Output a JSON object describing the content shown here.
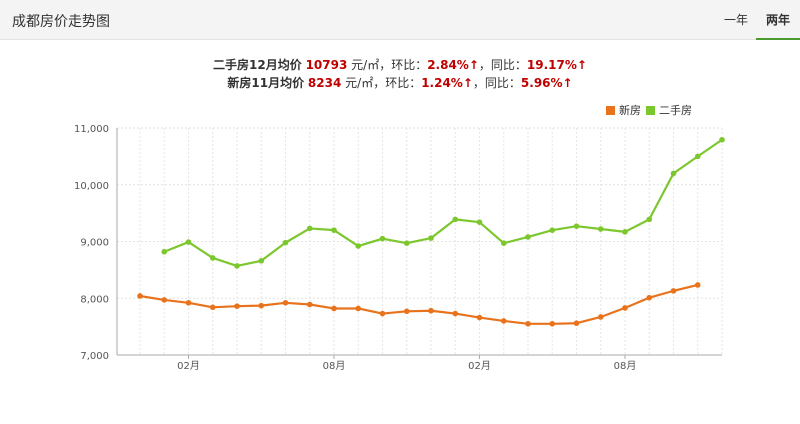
{
  "header": {
    "title": "成都房价走势图",
    "tabs": [
      {
        "label": "一年",
        "active": false
      },
      {
        "label": "两年",
        "active": true
      }
    ]
  },
  "summary": {
    "line1": {
      "label": "二手房12月均价",
      "price": "10793",
      "unit": "元/㎡，环比：",
      "mom": "2.84%↑",
      "sep": "，同比：",
      "yoy": "19.17%↑"
    },
    "line2": {
      "label": "新房11月均价",
      "price": "8234",
      "unit": "元/㎡，环比：",
      "mom": "1.24%↑",
      "sep": "，同比：",
      "yoy": "5.96%↑"
    }
  },
  "colors": {
    "new_home": "#e8731c",
    "second_hand": "#7dc72e",
    "accent_tab": "#4a9a2e",
    "highlight": "#c00000"
  },
  "chart_data": {
    "type": "line",
    "x": [
      0,
      1,
      2,
      3,
      4,
      5,
      6,
      7,
      8,
      9,
      10,
      11,
      12,
      13,
      14,
      15,
      16,
      17,
      18,
      19,
      20,
      21,
      22,
      23,
      24
    ],
    "x_tick_labels": [
      {
        "index": 2,
        "label": "02月"
      },
      {
        "index": 8,
        "label": "08月"
      },
      {
        "index": 14,
        "label": "02月"
      },
      {
        "index": 20,
        "label": "08月"
      }
    ],
    "ylim": [
      7000,
      11000
    ],
    "y_ticks": [
      "7,000",
      "8,000",
      "9,000",
      "10,000",
      "11,000"
    ],
    "y_tick_values": [
      7000,
      8000,
      9000,
      10000,
      11000
    ],
    "grid": true,
    "legend_position": "top-right",
    "series": [
      {
        "name": "新房",
        "color": "#e8731c",
        "values": [
          8040,
          7970,
          7920,
          7840,
          7860,
          7870,
          7920,
          7890,
          7820,
          7820,
          7730,
          7770,
          7780,
          7730,
          7660,
          7600,
          7550,
          7550,
          7560,
          7670,
          7830,
          8010,
          8130,
          8234,
          null
        ]
      },
      {
        "name": "二手房",
        "color": "#7dc72e",
        "values": [
          null,
          8820,
          8990,
          8710,
          8570,
          8660,
          8980,
          9230,
          9200,
          8920,
          9050,
          8970,
          9060,
          9390,
          9340,
          8970,
          9080,
          9200,
          9270,
          9220,
          9170,
          9390,
          10200,
          10500,
          10793
        ]
      }
    ]
  }
}
